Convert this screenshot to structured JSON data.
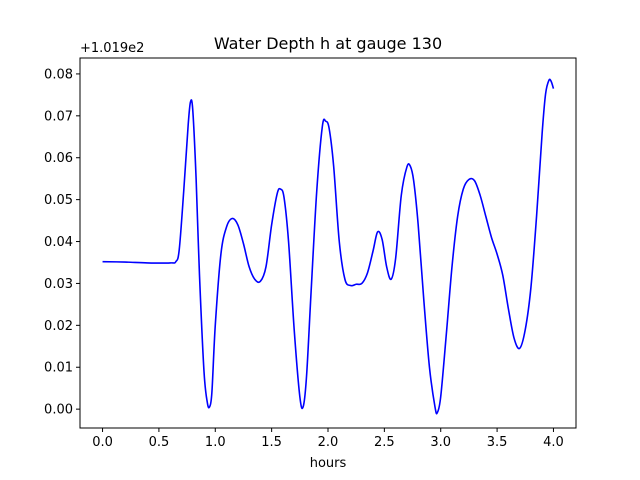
{
  "chart_data": {
    "type": "line",
    "title": "Water Depth h at gauge 130",
    "xlabel": "hours",
    "ylabel": "",
    "y_offset_text": "+1.019e2",
    "xlim": [
      -0.2,
      4.2
    ],
    "ylim": [
      -0.0045,
      0.0838
    ],
    "x_ticks": [
      0.0,
      0.5,
      1.0,
      1.5,
      2.0,
      2.5,
      3.0,
      3.5,
      4.0
    ],
    "x_tick_labels": [
      "0.0",
      "0.5",
      "1.0",
      "1.5",
      "2.0",
      "2.5",
      "3.0",
      "3.5",
      "4.0"
    ],
    "y_ticks": [
      0.0,
      0.01,
      0.02,
      0.03,
      0.04,
      0.05,
      0.06,
      0.07,
      0.08
    ],
    "y_tick_labels": [
      "0.00",
      "0.01",
      "0.02",
      "0.03",
      "0.04",
      "0.05",
      "0.06",
      "0.07",
      "0.08"
    ],
    "grid": false,
    "legend": "none",
    "series": [
      {
        "color": "#0000ff",
        "x": [
          0.0,
          0.2,
          0.4,
          0.6,
          0.65,
          0.68,
          0.72,
          0.76,
          0.78,
          0.8,
          0.83,
          0.86,
          0.9,
          0.93,
          0.95,
          0.97,
          1.0,
          1.05,
          1.1,
          1.15,
          1.2,
          1.25,
          1.3,
          1.35,
          1.4,
          1.45,
          1.5,
          1.55,
          1.58,
          1.61,
          1.65,
          1.7,
          1.75,
          1.78,
          1.81,
          1.85,
          1.9,
          1.95,
          1.98,
          2.01,
          2.05,
          2.1,
          2.15,
          2.2,
          2.25,
          2.3,
          2.35,
          2.4,
          2.44,
          2.48,
          2.52,
          2.56,
          2.6,
          2.65,
          2.7,
          2.73,
          2.76,
          2.8,
          2.85,
          2.9,
          2.95,
          2.97,
          3.0,
          3.05,
          3.1,
          3.15,
          3.2,
          3.25,
          3.3,
          3.35,
          3.4,
          3.45,
          3.5,
          3.55,
          3.6,
          3.65,
          3.7,
          3.75,
          3.8,
          3.85,
          3.9,
          3.93,
          3.96,
          3.98,
          4.0
        ],
        "y": [
          0.0352,
          0.0351,
          0.0349,
          0.0349,
          0.0352,
          0.038,
          0.052,
          0.068,
          0.0733,
          0.0715,
          0.055,
          0.032,
          0.009,
          0.0015,
          0.0006,
          0.004,
          0.02,
          0.037,
          0.0435,
          0.0455,
          0.044,
          0.0395,
          0.034,
          0.031,
          0.0305,
          0.034,
          0.044,
          0.0515,
          0.0525,
          0.0505,
          0.04,
          0.019,
          0.003,
          0.0006,
          0.008,
          0.028,
          0.052,
          0.0675,
          0.0687,
          0.067,
          0.058,
          0.04,
          0.031,
          0.0295,
          0.0298,
          0.03,
          0.0325,
          0.0378,
          0.0423,
          0.0405,
          0.034,
          0.031,
          0.036,
          0.051,
          0.0578,
          0.058,
          0.0545,
          0.044,
          0.026,
          0.01,
          0.0004,
          -0.0008,
          0.003,
          0.018,
          0.034,
          0.046,
          0.0525,
          0.0548,
          0.0545,
          0.051,
          0.046,
          0.041,
          0.037,
          0.032,
          0.024,
          0.017,
          0.0145,
          0.019,
          0.029,
          0.046,
          0.066,
          0.0752,
          0.0785,
          0.0782,
          0.0765
        ]
      }
    ]
  }
}
